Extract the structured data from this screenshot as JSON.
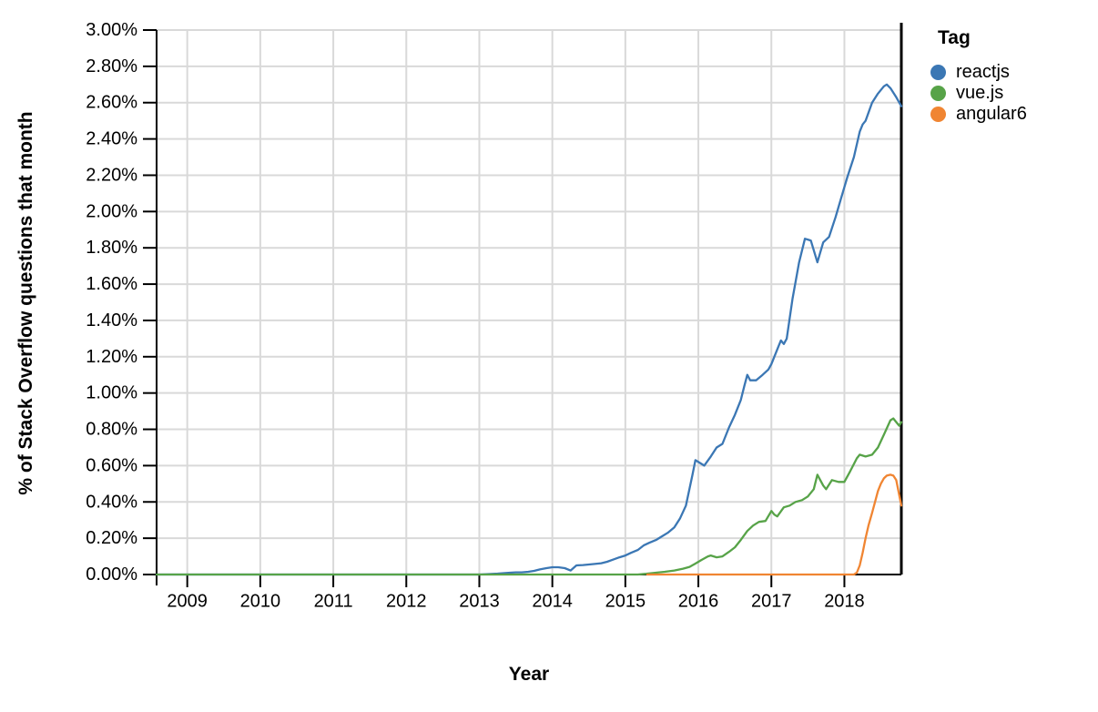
{
  "chart_data": {
    "type": "line",
    "title": "",
    "xlabel": "Year",
    "ylabel": "% of Stack Overflow questions that month",
    "legend": {
      "title": "Tag",
      "position": "right",
      "entries": [
        "reactjs",
        "vue.js",
        "angular6"
      ]
    },
    "xlim": [
      2008.58,
      2018.78
    ],
    "ylim": [
      0,
      3.0
    ],
    "grid": true,
    "x_tick_values": [
      2009,
      2010,
      2011,
      2012,
      2013,
      2014,
      2015,
      2016,
      2017,
      2018
    ],
    "x_tick_labels": [
      "2009",
      "2010",
      "2011",
      "2012",
      "2013",
      "2014",
      "2015",
      "2016",
      "2017",
      "2018"
    ],
    "y_tick_values": [
      0.0,
      0.2,
      0.4,
      0.6,
      0.8,
      1.0,
      1.2,
      1.4,
      1.6,
      1.8,
      2.0,
      2.2,
      2.4,
      2.6,
      2.8,
      3.0
    ],
    "y_tick_labels": [
      "0.00%",
      "0.20%",
      "0.40%",
      "0.60%",
      "0.80%",
      "1.00%",
      "1.20%",
      "1.40%",
      "1.60%",
      "1.80%",
      "2.00%",
      "2.20%",
      "2.40%",
      "2.60%",
      "2.80%",
      "3.00%"
    ],
    "axis_color": "#000000",
    "grid_color": "#d9d9d9",
    "series": [
      {
        "name": "reactjs",
        "color": "#3b77b4",
        "points": [
          [
            2008.58,
            0
          ],
          [
            2009.5,
            0
          ],
          [
            2010.5,
            0
          ],
          [
            2011.5,
            0
          ],
          [
            2012.5,
            0
          ],
          [
            2013.0,
            0
          ],
          [
            2013.25,
            0.005
          ],
          [
            2013.42,
            0.01
          ],
          [
            2013.5,
            0.012
          ],
          [
            2013.58,
            0.012
          ],
          [
            2013.67,
            0.015
          ],
          [
            2013.75,
            0.02
          ],
          [
            2013.83,
            0.028
          ],
          [
            2013.92,
            0.035
          ],
          [
            2014.0,
            0.04
          ],
          [
            2014.08,
            0.04
          ],
          [
            2014.17,
            0.035
          ],
          [
            2014.25,
            0.022
          ],
          [
            2014.33,
            0.05
          ],
          [
            2014.42,
            0.052
          ],
          [
            2014.5,
            0.055
          ],
          [
            2014.58,
            0.058
          ],
          [
            2014.67,
            0.062
          ],
          [
            2014.75,
            0.07
          ],
          [
            2014.83,
            0.082
          ],
          [
            2014.92,
            0.095
          ],
          [
            2015.0,
            0.105
          ],
          [
            2015.08,
            0.12
          ],
          [
            2015.17,
            0.135
          ],
          [
            2015.25,
            0.16
          ],
          [
            2015.33,
            0.175
          ],
          [
            2015.42,
            0.19
          ],
          [
            2015.5,
            0.21
          ],
          [
            2015.58,
            0.23
          ],
          [
            2015.67,
            0.26
          ],
          [
            2015.75,
            0.31
          ],
          [
            2015.83,
            0.38
          ],
          [
            2015.92,
            0.55
          ],
          [
            2015.96,
            0.63
          ],
          [
            2016.04,
            0.61
          ],
          [
            2016.08,
            0.6
          ],
          [
            2016.17,
            0.65
          ],
          [
            2016.25,
            0.7
          ],
          [
            2016.33,
            0.72
          ],
          [
            2016.42,
            0.81
          ],
          [
            2016.5,
            0.88
          ],
          [
            2016.58,
            0.96
          ],
          [
            2016.63,
            1.04
          ],
          [
            2016.67,
            1.1
          ],
          [
            2016.71,
            1.07
          ],
          [
            2016.79,
            1.07
          ],
          [
            2016.88,
            1.1
          ],
          [
            2016.96,
            1.13
          ],
          [
            2017.0,
            1.16
          ],
          [
            2017.08,
            1.24
          ],
          [
            2017.13,
            1.29
          ],
          [
            2017.17,
            1.27
          ],
          [
            2017.21,
            1.3
          ],
          [
            2017.29,
            1.52
          ],
          [
            2017.38,
            1.72
          ],
          [
            2017.46,
            1.85
          ],
          [
            2017.54,
            1.84
          ],
          [
            2017.63,
            1.72
          ],
          [
            2017.71,
            1.83
          ],
          [
            2017.79,
            1.86
          ],
          [
            2017.88,
            1.97
          ],
          [
            2017.96,
            2.08
          ],
          [
            2018.04,
            2.19
          ],
          [
            2018.13,
            2.3
          ],
          [
            2018.21,
            2.44
          ],
          [
            2018.25,
            2.48
          ],
          [
            2018.29,
            2.5
          ],
          [
            2018.38,
            2.6
          ],
          [
            2018.46,
            2.65
          ],
          [
            2018.54,
            2.69
          ],
          [
            2018.58,
            2.7
          ],
          [
            2018.63,
            2.68
          ],
          [
            2018.71,
            2.63
          ],
          [
            2018.78,
            2.58
          ]
        ]
      },
      {
        "name": "vue.js",
        "color": "#57a348",
        "points": [
          [
            2008.58,
            0
          ],
          [
            2009.5,
            0
          ],
          [
            2010.5,
            0
          ],
          [
            2011.5,
            0
          ],
          [
            2012.5,
            0
          ],
          [
            2013.5,
            0
          ],
          [
            2014.5,
            0
          ],
          [
            2015.0,
            0
          ],
          [
            2015.17,
            0
          ],
          [
            2015.29,
            0.004
          ],
          [
            2015.42,
            0.01
          ],
          [
            2015.54,
            0.015
          ],
          [
            2015.67,
            0.022
          ],
          [
            2015.79,
            0.032
          ],
          [
            2015.88,
            0.042
          ],
          [
            2015.96,
            0.06
          ],
          [
            2016.04,
            0.08
          ],
          [
            2016.13,
            0.1
          ],
          [
            2016.17,
            0.105
          ],
          [
            2016.25,
            0.095
          ],
          [
            2016.33,
            0.1
          ],
          [
            2016.42,
            0.125
          ],
          [
            2016.5,
            0.15
          ],
          [
            2016.58,
            0.19
          ],
          [
            2016.67,
            0.24
          ],
          [
            2016.75,
            0.27
          ],
          [
            2016.83,
            0.29
          ],
          [
            2016.92,
            0.295
          ],
          [
            2017.0,
            0.35
          ],
          [
            2017.04,
            0.33
          ],
          [
            2017.08,
            0.32
          ],
          [
            2017.17,
            0.37
          ],
          [
            2017.25,
            0.38
          ],
          [
            2017.33,
            0.4
          ],
          [
            2017.42,
            0.41
          ],
          [
            2017.5,
            0.43
          ],
          [
            2017.58,
            0.47
          ],
          [
            2017.63,
            0.55
          ],
          [
            2017.71,
            0.49
          ],
          [
            2017.75,
            0.47
          ],
          [
            2017.83,
            0.52
          ],
          [
            2017.92,
            0.51
          ],
          [
            2018.0,
            0.51
          ],
          [
            2018.08,
            0.57
          ],
          [
            2018.17,
            0.64
          ],
          [
            2018.21,
            0.66
          ],
          [
            2018.29,
            0.65
          ],
          [
            2018.38,
            0.66
          ],
          [
            2018.46,
            0.7
          ],
          [
            2018.54,
            0.77
          ],
          [
            2018.63,
            0.85
          ],
          [
            2018.67,
            0.86
          ],
          [
            2018.71,
            0.84
          ],
          [
            2018.75,
            0.82
          ],
          [
            2018.78,
            0.84
          ]
        ]
      },
      {
        "name": "angular6",
        "color": "#f08532",
        "points": [
          [
            2015.3,
            0
          ],
          [
            2016.0,
            0
          ],
          [
            2016.5,
            0
          ],
          [
            2017.0,
            0
          ],
          [
            2017.5,
            0
          ],
          [
            2018.0,
            0
          ],
          [
            2018.13,
            0
          ],
          [
            2018.17,
            0.01
          ],
          [
            2018.21,
            0.05
          ],
          [
            2018.25,
            0.12
          ],
          [
            2018.29,
            0.2
          ],
          [
            2018.33,
            0.27
          ],
          [
            2018.38,
            0.34
          ],
          [
            2018.42,
            0.4
          ],
          [
            2018.46,
            0.46
          ],
          [
            2018.5,
            0.5
          ],
          [
            2018.54,
            0.53
          ],
          [
            2018.58,
            0.545
          ],
          [
            2018.63,
            0.55
          ],
          [
            2018.67,
            0.545
          ],
          [
            2018.71,
            0.52
          ],
          [
            2018.75,
            0.44
          ],
          [
            2018.78,
            0.38
          ]
        ]
      }
    ]
  }
}
